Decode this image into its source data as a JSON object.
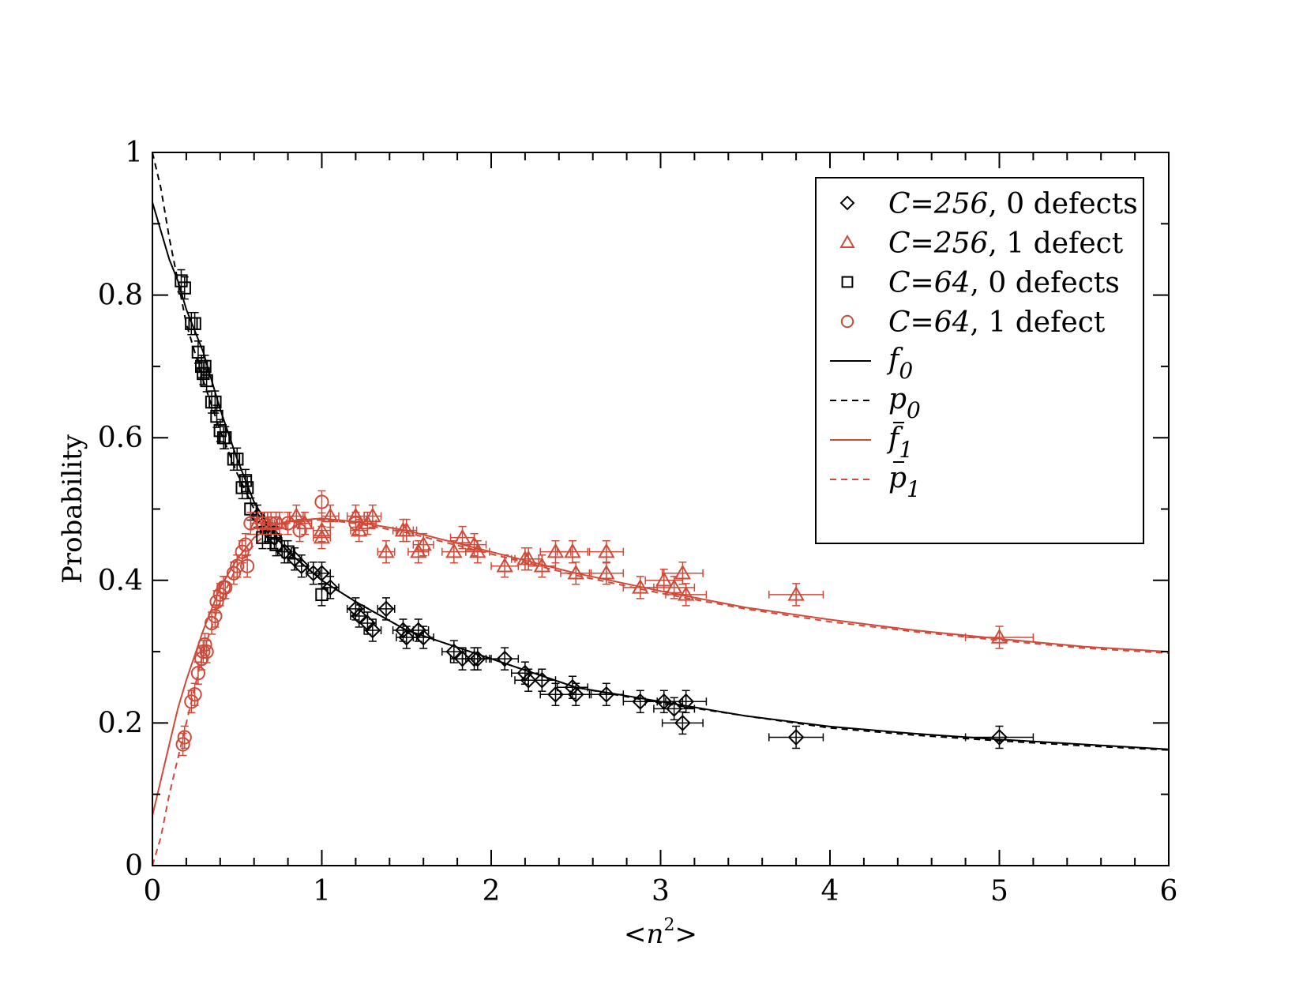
{
  "chart_data": {
    "type": "scatter",
    "xlabel_parts": {
      "open": "<",
      "var": "n",
      "sup": "2",
      "close": ">"
    },
    "ylabel": "Probability",
    "xlim": [
      0,
      6
    ],
    "ylim": [
      0,
      1
    ],
    "xticks": [
      0,
      1,
      2,
      3,
      4,
      5,
      6
    ],
    "yticks": [
      0,
      0.2,
      0.4,
      0.6,
      0.8,
      1
    ],
    "xtick_labels": [
      "0",
      "1",
      "2",
      "3",
      "4",
      "5",
      "6"
    ],
    "ytick_labels": [
      "0",
      "0.2",
      "0.4",
      "0.6",
      "0.8",
      "1"
    ],
    "grid": false,
    "legend_position": "top-right",
    "colors": {
      "black": "#000000",
      "red": "#d04a3a"
    },
    "series": [
      {
        "name_italic": "C=256",
        "name_rest": ", 0 defects",
        "marker": "diamond",
        "color": "black",
        "points": [
          [
            0.62,
            0.49,
            0.04
          ],
          [
            0.68,
            0.47,
            0.04
          ],
          [
            0.72,
            0.46,
            0.04
          ],
          [
            0.78,
            0.44,
            0.04
          ],
          [
            0.84,
            0.43,
            0.04
          ],
          [
            0.88,
            0.42,
            0.04
          ],
          [
            0.95,
            0.41,
            0.04
          ],
          [
            1.0,
            0.41,
            0.05
          ],
          [
            1.05,
            0.39,
            0.05
          ],
          [
            1.2,
            0.36,
            0.05
          ],
          [
            1.22,
            0.35,
            0.05
          ],
          [
            1.27,
            0.34,
            0.05
          ],
          [
            1.3,
            0.33,
            0.05
          ],
          [
            1.38,
            0.36,
            0.05
          ],
          [
            1.48,
            0.33,
            0.06
          ],
          [
            1.5,
            0.32,
            0.06
          ],
          [
            1.57,
            0.33,
            0.06
          ],
          [
            1.6,
            0.32,
            0.06
          ],
          [
            1.78,
            0.3,
            0.07
          ],
          [
            1.83,
            0.29,
            0.07
          ],
          [
            1.9,
            0.29,
            0.07
          ],
          [
            1.92,
            0.29,
            0.07
          ],
          [
            2.08,
            0.29,
            0.08
          ],
          [
            2.2,
            0.27,
            0.08
          ],
          [
            2.22,
            0.26,
            0.08
          ],
          [
            2.3,
            0.26,
            0.08
          ],
          [
            2.38,
            0.24,
            0.09
          ],
          [
            2.48,
            0.25,
            0.09
          ],
          [
            2.5,
            0.24,
            0.09
          ],
          [
            2.68,
            0.24,
            0.1
          ],
          [
            2.88,
            0.23,
            0.1
          ],
          [
            3.02,
            0.23,
            0.11
          ],
          [
            3.08,
            0.22,
            0.12
          ],
          [
            3.15,
            0.23,
            0.12
          ],
          [
            3.13,
            0.2,
            0.12
          ],
          [
            3.8,
            0.18,
            0.16
          ],
          [
            5.0,
            0.18,
            0.2
          ]
        ]
      },
      {
        "name_italic": "C=256",
        "name_rest": ", 1 defect",
        "marker": "triangle",
        "color": "red",
        "points": [
          [
            0.62,
            0.48,
            0.04
          ],
          [
            0.68,
            0.48,
            0.04
          ],
          [
            0.75,
            0.48,
            0.04
          ],
          [
            0.85,
            0.49,
            0.04
          ],
          [
            0.9,
            0.48,
            0.04
          ],
          [
            1.0,
            0.47,
            0.05
          ],
          [
            1.0,
            0.46,
            0.05
          ],
          [
            1.05,
            0.49,
            0.05
          ],
          [
            1.2,
            0.49,
            0.05
          ],
          [
            1.22,
            0.47,
            0.05
          ],
          [
            1.27,
            0.48,
            0.05
          ],
          [
            1.3,
            0.49,
            0.05
          ],
          [
            1.38,
            0.44,
            0.05
          ],
          [
            1.48,
            0.47,
            0.06
          ],
          [
            1.5,
            0.47,
            0.06
          ],
          [
            1.57,
            0.44,
            0.06
          ],
          [
            1.6,
            0.45,
            0.06
          ],
          [
            1.78,
            0.44,
            0.07
          ],
          [
            1.83,
            0.46,
            0.07
          ],
          [
            1.9,
            0.45,
            0.07
          ],
          [
            1.92,
            0.44,
            0.07
          ],
          [
            2.08,
            0.42,
            0.08
          ],
          [
            2.2,
            0.43,
            0.08
          ],
          [
            2.22,
            0.43,
            0.08
          ],
          [
            2.3,
            0.42,
            0.08
          ],
          [
            2.38,
            0.44,
            0.09
          ],
          [
            2.48,
            0.44,
            0.09
          ],
          [
            2.5,
            0.41,
            0.09
          ],
          [
            2.68,
            0.44,
            0.1
          ],
          [
            2.68,
            0.41,
            0.1
          ],
          [
            2.88,
            0.39,
            0.1
          ],
          [
            3.02,
            0.4,
            0.11
          ],
          [
            3.08,
            0.39,
            0.12
          ],
          [
            3.15,
            0.38,
            0.12
          ],
          [
            3.13,
            0.41,
            0.12
          ],
          [
            3.8,
            0.38,
            0.16
          ],
          [
            5.0,
            0.32,
            0.2
          ]
        ]
      },
      {
        "name_italic": "C=64",
        "name_rest": ", 0 defects",
        "marker": "square",
        "color": "black",
        "points": [
          [
            0.17,
            0.82,
            0.0
          ],
          [
            0.19,
            0.81,
            0.0
          ],
          [
            0.23,
            0.76,
            0.0
          ],
          [
            0.25,
            0.76,
            0.0
          ],
          [
            0.27,
            0.72,
            0.0
          ],
          [
            0.29,
            0.7,
            0.0
          ],
          [
            0.3,
            0.69,
            0.0
          ],
          [
            0.31,
            0.7,
            0.0
          ],
          [
            0.32,
            0.68,
            0.0
          ],
          [
            0.35,
            0.65,
            0.0
          ],
          [
            0.37,
            0.65,
            0.0
          ],
          [
            0.38,
            0.63,
            0.0
          ],
          [
            0.4,
            0.61,
            0.0
          ],
          [
            0.42,
            0.6,
            0.0
          ],
          [
            0.43,
            0.6,
            0.0
          ],
          [
            0.48,
            0.57,
            0.0
          ],
          [
            0.5,
            0.57,
            0.0
          ],
          [
            0.53,
            0.53,
            0.0
          ],
          [
            0.55,
            0.54,
            0.0
          ],
          [
            0.56,
            0.53,
            0.0
          ],
          [
            0.58,
            0.5,
            0.0
          ],
          [
            0.65,
            0.46,
            0.0
          ],
          [
            0.7,
            0.46,
            0.0
          ],
          [
            0.73,
            0.45,
            0.0
          ],
          [
            0.8,
            0.44,
            0.0
          ],
          [
            1.0,
            0.38,
            0.0
          ]
        ]
      },
      {
        "name_italic": "C=64",
        "name_rest": ", 1 defect",
        "marker": "circle",
        "color": "red",
        "points": [
          [
            0.18,
            0.17,
            0.0
          ],
          [
            0.19,
            0.18,
            0.0
          ],
          [
            0.23,
            0.23,
            0.0
          ],
          [
            0.25,
            0.24,
            0.0
          ],
          [
            0.27,
            0.27,
            0.0
          ],
          [
            0.29,
            0.29,
            0.0
          ],
          [
            0.3,
            0.3,
            0.0
          ],
          [
            0.31,
            0.31,
            0.0
          ],
          [
            0.32,
            0.3,
            0.0
          ],
          [
            0.35,
            0.34,
            0.0
          ],
          [
            0.37,
            0.35,
            0.0
          ],
          [
            0.38,
            0.37,
            0.0
          ],
          [
            0.4,
            0.38,
            0.0
          ],
          [
            0.42,
            0.39,
            0.0
          ],
          [
            0.43,
            0.39,
            0.0
          ],
          [
            0.48,
            0.41,
            0.0
          ],
          [
            0.5,
            0.42,
            0.0
          ],
          [
            0.53,
            0.44,
            0.0
          ],
          [
            0.55,
            0.45,
            0.0
          ],
          [
            0.56,
            0.42,
            0.0
          ],
          [
            0.58,
            0.48,
            0.0
          ],
          [
            0.65,
            0.48,
            0.0
          ],
          [
            0.7,
            0.48,
            0.0
          ],
          [
            0.73,
            0.48,
            0.0
          ],
          [
            0.8,
            0.48,
            0.0
          ],
          [
            0.87,
            0.47,
            0.0
          ],
          [
            1.0,
            0.51,
            0.0
          ],
          [
            1.2,
            0.48,
            0.0
          ]
        ]
      }
    ],
    "curves": [
      {
        "name": "f",
        "sub": "0",
        "bar": false,
        "color": "black",
        "dash": false,
        "x": [
          0.0,
          0.05,
          0.1,
          0.15,
          0.2,
          0.3,
          0.4,
          0.5,
          0.6,
          0.7,
          0.8,
          1.0,
          1.2,
          1.5,
          2.0,
          2.5,
          3.0,
          3.5,
          4.0,
          4.5,
          5.0,
          5.5,
          6.0
        ],
        "y": [
          0.93,
          0.89,
          0.85,
          0.82,
          0.78,
          0.72,
          0.64,
          0.57,
          0.51,
          0.47,
          0.44,
          0.4,
          0.37,
          0.33,
          0.29,
          0.25,
          0.23,
          0.21,
          0.195,
          0.185,
          0.177,
          0.17,
          0.163
        ]
      },
      {
        "name": "p",
        "sub": "0",
        "bar": false,
        "color": "black",
        "dash": true,
        "x": [
          0.0,
          0.05,
          0.1,
          0.15,
          0.2,
          0.3,
          0.4,
          0.5,
          0.6,
          0.7,
          0.8,
          1.0,
          1.2,
          1.5,
          2.0,
          2.5,
          3.0,
          3.5,
          4.0,
          4.5,
          5.0,
          5.5,
          6.0
        ],
        "y": [
          1.0,
          0.95,
          0.88,
          0.82,
          0.76,
          0.68,
          0.61,
          0.55,
          0.5,
          0.47,
          0.44,
          0.4,
          0.37,
          0.33,
          0.29,
          0.25,
          0.228,
          0.21,
          0.193,
          0.183,
          0.175,
          0.168,
          0.162
        ]
      },
      {
        "name": "f",
        "sub": "1",
        "bar": true,
        "color": "red",
        "dash": false,
        "x": [
          0.0,
          0.05,
          0.1,
          0.15,
          0.2,
          0.3,
          0.4,
          0.5,
          0.6,
          0.7,
          0.8,
          1.0,
          1.2,
          1.5,
          2.0,
          2.5,
          3.0,
          3.5,
          4.0,
          4.5,
          5.0,
          5.5,
          6.0
        ],
        "y": [
          0.07,
          0.12,
          0.17,
          0.22,
          0.26,
          0.33,
          0.39,
          0.43,
          0.46,
          0.475,
          0.483,
          0.487,
          0.482,
          0.47,
          0.44,
          0.41,
          0.385,
          0.362,
          0.345,
          0.33,
          0.318,
          0.307,
          0.3
        ]
      },
      {
        "name": "p",
        "sub": "1",
        "bar": true,
        "color": "red",
        "dash": true,
        "x": [
          0.0,
          0.05,
          0.1,
          0.15,
          0.2,
          0.3,
          0.4,
          0.5,
          0.6,
          0.7,
          0.8,
          1.0,
          1.2,
          1.5,
          2.0,
          2.5,
          3.0,
          3.5,
          4.0,
          4.5,
          5.0,
          5.5,
          6.0
        ],
        "y": [
          0.0,
          0.04,
          0.1,
          0.15,
          0.2,
          0.3,
          0.37,
          0.42,
          0.45,
          0.47,
          0.48,
          0.485,
          0.48,
          0.467,
          0.437,
          0.407,
          0.382,
          0.36,
          0.342,
          0.328,
          0.316,
          0.305,
          0.298
        ]
      }
    ]
  }
}
